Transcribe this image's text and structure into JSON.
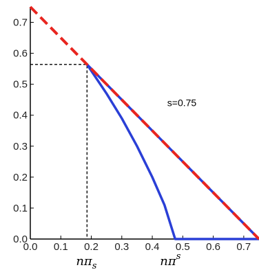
{
  "chart_data": {
    "type": "line",
    "title": "",
    "xlabel": "",
    "ylabel": "",
    "xlim": [
      0.0,
      0.75
    ],
    "ylim": [
      0.0,
      0.75
    ],
    "xticks": [
      "0.0",
      "0.1",
      "0.2",
      "0.3",
      "0.4",
      "0.5",
      "0.6",
      "0.7"
    ],
    "yticks": [
      "0.0",
      "0.1",
      "0.2",
      "0.3",
      "0.4",
      "0.5",
      "0.6",
      "0.7"
    ],
    "grid": false,
    "series": [
      {
        "style": "dashed",
        "color": "#e8251f",
        "points": [
          [
            0.0,
            0.75
          ],
          [
            0.75,
            0.0
          ]
        ]
      },
      {
        "style": "solid",
        "color": "#2a3fd6",
        "points": [
          [
            0.186,
            0.564
          ],
          [
            0.75,
            0.0
          ]
        ]
      },
      {
        "style": "solid",
        "color": "#2a3fd6",
        "points": [
          [
            0.186,
            0.564
          ],
          [
            0.25,
            0.47
          ],
          [
            0.3,
            0.39
          ],
          [
            0.35,
            0.3
          ],
          [
            0.4,
            0.2
          ],
          [
            0.44,
            0.11
          ],
          [
            0.475,
            0.0
          ],
          [
            0.75,
            0.0
          ]
        ]
      },
      {
        "style": "dotted",
        "color": "#000000",
        "points": [
          [
            0.0,
            0.564
          ],
          [
            0.186,
            0.564
          ],
          [
            0.186,
            0.0
          ]
        ]
      }
    ],
    "annotations": {
      "s_label": {
        "text": "s=0.75",
        "x": 0.44,
        "y": 0.44
      },
      "n_pi_sub": {
        "base": "nπ",
        "sub": "s",
        "x": 0.186
      },
      "n_pi_sup": {
        "base": "nπ",
        "sup": "s",
        "x": 0.475
      }
    }
  }
}
